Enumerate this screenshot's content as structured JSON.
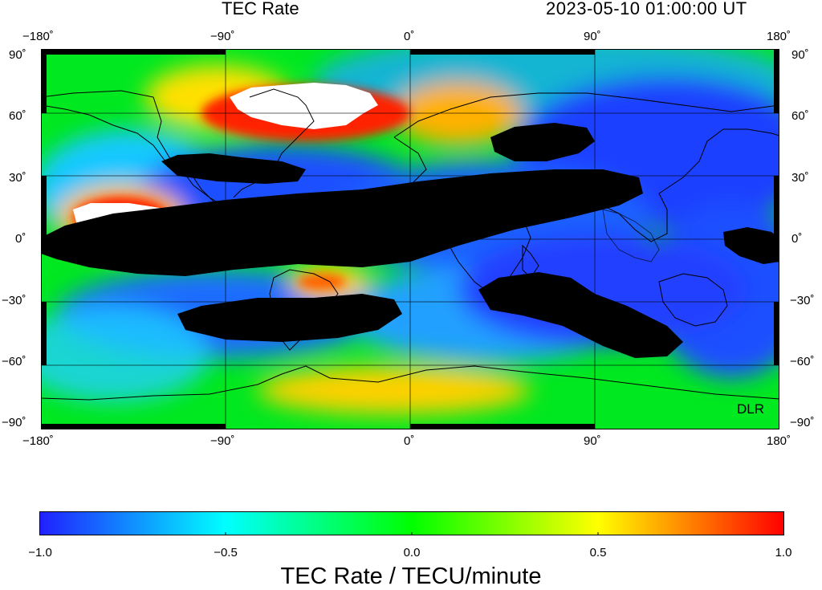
{
  "header": {
    "title": "TEC Rate",
    "datetime": "2023-05-10  01:00:00 UT"
  },
  "map": {
    "x_ticks": [
      "−180˚",
      "−90˚",
      "0˚",
      "90˚",
      "180˚"
    ],
    "y_ticks_left": [
      "90˚",
      "60˚",
      "30˚",
      "0˚",
      "−30˚",
      "−60˚",
      "−90˚"
    ],
    "y_ticks_right": [
      "90˚",
      "60˚",
      "30˚",
      "0˚",
      "−30˚",
      "−60˚",
      "−90˚"
    ],
    "credit": "DLR",
    "lon_range": [
      -180,
      180
    ],
    "lat_range": [
      -90,
      90
    ]
  },
  "colorbar": {
    "title": "TEC Rate / TECU/minute",
    "ticks": [
      "−1.0",
      "−0.5",
      "0.0",
      "0.5",
      "1.0"
    ],
    "range": [
      -1.0,
      1.0
    ],
    "colors": [
      "#2020ff",
      "#00ffff",
      "#00ff00",
      "#ffff00",
      "#ff0000"
    ]
  }
}
